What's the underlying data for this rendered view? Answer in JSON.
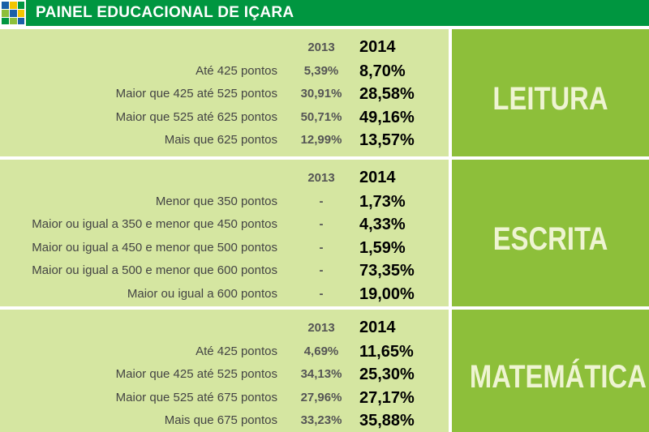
{
  "header": {
    "title": "PAINEL EDUCACIONAL DE IÇARA"
  },
  "sections": [
    {
      "name": "LEITURA",
      "columns": [
        "2013",
        "2014"
      ],
      "rows": [
        {
          "label": "Até 425 pontos",
          "values": [
            "5,39%",
            "8,70%"
          ]
        },
        {
          "label": "Maior que 425 até 525 pontos",
          "values": [
            "30,91%",
            "28,58%"
          ]
        },
        {
          "label": "Maior que 525 até 625 pontos",
          "values": [
            "50,71%",
            "49,16%"
          ]
        },
        {
          "label": "Mais que 625 pontos",
          "values": [
            "12,99%",
            "13,57%"
          ]
        }
      ]
    },
    {
      "name": "ESCRITA",
      "columns": [
        "2013",
        "2014"
      ],
      "rows": [
        {
          "label": "Menor que 350 pontos",
          "values": [
            "-",
            "1,73%"
          ]
        },
        {
          "label": "Maior ou igual a 350 e menor que 450 pontos",
          "values": [
            "-",
            "4,33%"
          ]
        },
        {
          "label": "Maior ou igual a 450 e menor que 500 pontos",
          "values": [
            "-",
            "1,59%"
          ]
        },
        {
          "label": "Maior ou igual a 500 e menor que 600 pontos",
          "values": [
            "-",
            "73,35%"
          ]
        },
        {
          "label": "Maior ou igual a 600 pontos",
          "values": [
            "-",
            "19,00%"
          ]
        }
      ]
    },
    {
      "name": "MATEMÁTICA",
      "columns": [
        "2013",
        "2014"
      ],
      "rows": [
        {
          "label": "Até 425 pontos",
          "values": [
            "4,69%",
            "11,65%"
          ]
        },
        {
          "label": "Maior que 425 até 525 pontos",
          "values": [
            "34,13%",
            "25,30%"
          ]
        },
        {
          "label": "Maior que 525 até 675 pontos",
          "values": [
            "27,96%",
            "27,17%"
          ]
        },
        {
          "label": "Mais que 675 pontos",
          "values": [
            "33,23%",
            "35,88%"
          ]
        }
      ]
    }
  ]
}
